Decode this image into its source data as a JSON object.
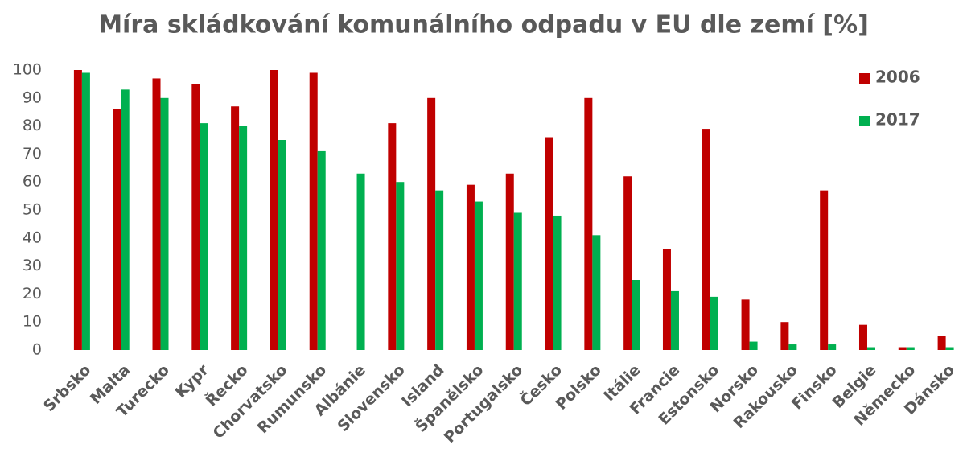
{
  "chart_data": {
    "type": "bar",
    "title": "Míra skládkování komunálního odpadu v EU dle zemí [%]",
    "categories": [
      "Srbsko",
      "Malta",
      "Turecko",
      "Kypr",
      "Řecko",
      "Chorvatsko",
      "Rumunsko",
      "Albánie",
      "Slovensko",
      "Island",
      "Španělsko",
      "Portugalsko",
      "Česko",
      "Polsko",
      "Itálie",
      "Francie",
      "Estonsko",
      "Norsko",
      "Rakousko",
      "Finsko",
      "Belgie",
      "Německo",
      "Dánsko"
    ],
    "series": [
      {
        "name": "2006",
        "color": "#c00000",
        "values": [
          100,
          86,
          97,
          95,
          87,
          100,
          99,
          null,
          81,
          90,
          59,
          63,
          76,
          90,
          62,
          36,
          79,
          18,
          10,
          57,
          9,
          1,
          5
        ]
      },
      {
        "name": "2017",
        "color": "#00b050",
        "values": [
          99,
          93,
          90,
          81,
          80,
          75,
          71,
          63,
          60,
          57,
          53,
          49,
          48,
          41,
          25,
          21,
          19,
          3,
          2,
          2,
          1,
          1,
          1
        ]
      }
    ],
    "ylim": [
      0,
      100
    ],
    "yticks": [
      0,
      10,
      20,
      30,
      40,
      50,
      60,
      70,
      80,
      90,
      100
    ],
    "grid": false,
    "legend": "top-right"
  }
}
